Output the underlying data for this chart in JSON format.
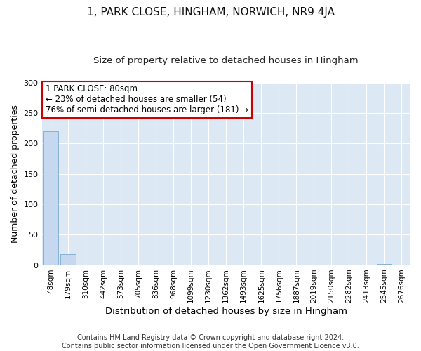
{
  "title": "1, PARK CLOSE, HINGHAM, NORWICH, NR9 4JA",
  "subtitle": "Size of property relative to detached houses in Hingham",
  "xlabel": "Distribution of detached houses by size in Hingham",
  "ylabel": "Number of detached properties",
  "bar_labels": [
    "48sqm",
    "179sqm",
    "310sqm",
    "442sqm",
    "573sqm",
    "705sqm",
    "836sqm",
    "968sqm",
    "1099sqm",
    "1230sqm",
    "1362sqm",
    "1493sqm",
    "1625sqm",
    "1756sqm",
    "1887sqm",
    "2019sqm",
    "2150sqm",
    "2282sqm",
    "2413sqm",
    "2545sqm",
    "2676sqm"
  ],
  "bar_values": [
    220,
    18,
    1,
    0,
    0,
    0,
    0,
    0,
    0,
    0,
    0,
    0,
    0,
    0,
    0,
    0,
    0,
    0,
    0,
    2,
    0
  ],
  "bar_color": "#c5d8f0",
  "bar_edge_color": "#7aabcf",
  "ylim": [
    0,
    300
  ],
  "yticks": [
    0,
    50,
    100,
    150,
    200,
    250,
    300
  ],
  "annotation_text": "1 PARK CLOSE: 80sqm\n← 23% of detached houses are smaller (54)\n76% of semi-detached houses are larger (181) →",
  "annotation_box_facecolor": "#ffffff",
  "annotation_box_edgecolor": "#cc0000",
  "footer_line1": "Contains HM Land Registry data © Crown copyright and database right 2024.",
  "footer_line2": "Contains public sector information licensed under the Open Government Licence v3.0.",
  "fig_bg_color": "#ffffff",
  "plot_bg_color": "#dce9f5",
  "grid_color": "#ffffff",
  "title_fontsize": 11,
  "subtitle_fontsize": 9.5,
  "axis_label_fontsize": 9,
  "tick_fontsize": 7.5,
  "footer_fontsize": 7
}
